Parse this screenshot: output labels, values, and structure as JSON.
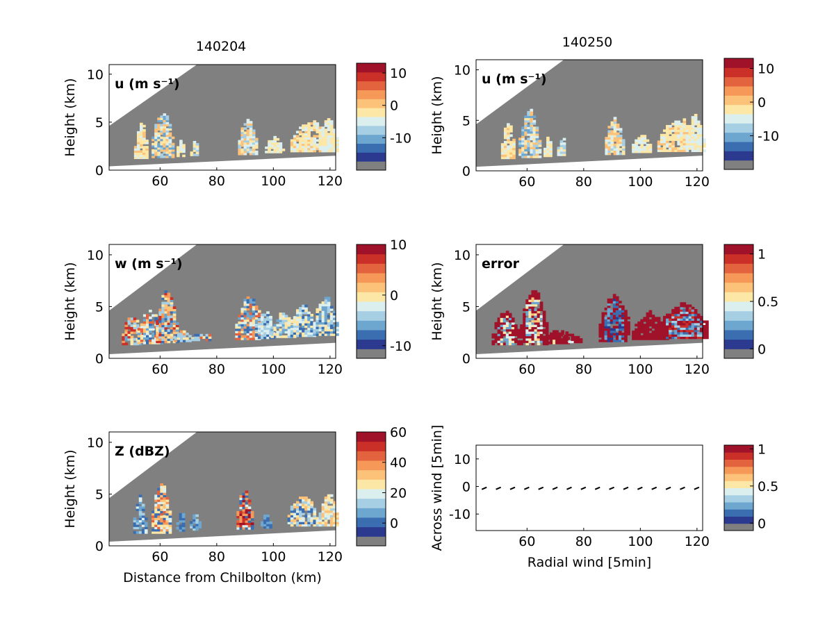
{
  "columns": [
    {
      "title": "140204"
    },
    {
      "title": "140250"
    }
  ],
  "colorbar_colors": [
    "#808080",
    "#2b3a8f",
    "#3b6eb0",
    "#6da6ce",
    "#a7cfe4",
    "#dcefef",
    "#fde7a6",
    "#fdc27a",
    "#f59858",
    "#e4633f",
    "#cb3028",
    "#a0122a"
  ],
  "chart_data": [
    {
      "type": "heatmap",
      "panel": "u-left",
      "title": "140204",
      "label": "u (m s⁻¹)",
      "ylabel": "Height (km)",
      "xlabel": "",
      "xlim": [
        42,
        122
      ],
      "ylim": [
        0,
        11
      ],
      "xticks": [
        "60",
        "80",
        "100",
        "120"
      ],
      "yticks": [
        "0",
        "5",
        "10"
      ],
      "colorbar": {
        "ticks": [
          "10",
          "0",
          "-10"
        ],
        "tick_values": [
          10,
          0,
          -10
        ],
        "range": [
          -20,
          13
        ]
      }
    },
    {
      "type": "heatmap",
      "panel": "u-right",
      "title": "140250",
      "label": "u (m s⁻¹)",
      "ylabel": "Height (km)",
      "xlabel": "",
      "xlim": [
        42,
        122
      ],
      "ylim": [
        0,
        11
      ],
      "xticks": [
        "60",
        "80",
        "100",
        "120"
      ],
      "yticks": [
        "0",
        "5",
        "10"
      ],
      "colorbar": {
        "ticks": [
          "10",
          "0",
          "-10"
        ],
        "tick_values": [
          10,
          0,
          -10
        ],
        "range": [
          -20,
          13
        ]
      }
    },
    {
      "type": "heatmap",
      "panel": "w-left",
      "label": "w (m s⁻¹)",
      "ylabel": "Height (km)",
      "xlabel": "",
      "xlim": [
        42,
        122
      ],
      "ylim": [
        0,
        11
      ],
      "xticks": [
        "60",
        "80",
        "100",
        "120"
      ],
      "yticks": [
        "0",
        "5",
        "10"
      ],
      "colorbar": {
        "ticks": [
          "10",
          "0",
          "-10"
        ],
        "tick_values": [
          10,
          0,
          -10
        ],
        "range": [
          -12.5,
          10
        ]
      }
    },
    {
      "type": "heatmap",
      "panel": "error-right",
      "label": "error",
      "ylabel": "Height (km)",
      "xlabel": "",
      "xlim": [
        42,
        122
      ],
      "ylim": [
        0,
        11
      ],
      "xticks": [
        "60",
        "80",
        "100",
        "120"
      ],
      "yticks": [
        "0",
        "5",
        "10"
      ],
      "colorbar": {
        "ticks": [
          "1",
          "0.5",
          "0"
        ],
        "tick_values": [
          1,
          0.5,
          0
        ],
        "range": [
          -0.1,
          1.1
        ]
      }
    },
    {
      "type": "heatmap",
      "panel": "z-left",
      "label": "Z (dBZ)",
      "ylabel": "Height (km)",
      "xlabel": "Distance from Chilbolton (km)",
      "xlim": [
        42,
        122
      ],
      "ylim": [
        0,
        11
      ],
      "xticks": [
        "60",
        "80",
        "100",
        "120"
      ],
      "yticks": [
        "0",
        "5",
        "10"
      ],
      "colorbar": {
        "ticks": [
          "60",
          "40",
          "20",
          "0"
        ],
        "tick_values": [
          60,
          40,
          20,
          0
        ],
        "range": [
          -15,
          60
        ]
      }
    },
    {
      "type": "scatter",
      "panel": "quiver-right",
      "label": "",
      "ylabel": "Across wind [5min]",
      "xlabel": "Radial wind [5min]",
      "xlim": [
        42,
        122
      ],
      "ylim": [
        -16,
        15
      ],
      "xticks": [
        "60",
        "80",
        "100",
        "120"
      ],
      "yticks": [
        "10",
        "0",
        "-10"
      ],
      "x": [
        45,
        50,
        55,
        60,
        65,
        70,
        75,
        80,
        85,
        90,
        95,
        100,
        105,
        110,
        115,
        120
      ],
      "y": [
        -0.8,
        -0.8,
        -0.8,
        -0.8,
        -0.8,
        -0.8,
        -0.8,
        -0.8,
        -0.8,
        -0.8,
        -0.8,
        -0.8,
        -0.8,
        -0.8,
        -0.8,
        -0.8
      ],
      "colorbar": {
        "ticks": [
          "1",
          "0.5",
          "0"
        ],
        "tick_values": [
          1,
          0.5,
          0
        ],
        "range": [
          -0.1,
          1.05
        ]
      }
    }
  ]
}
